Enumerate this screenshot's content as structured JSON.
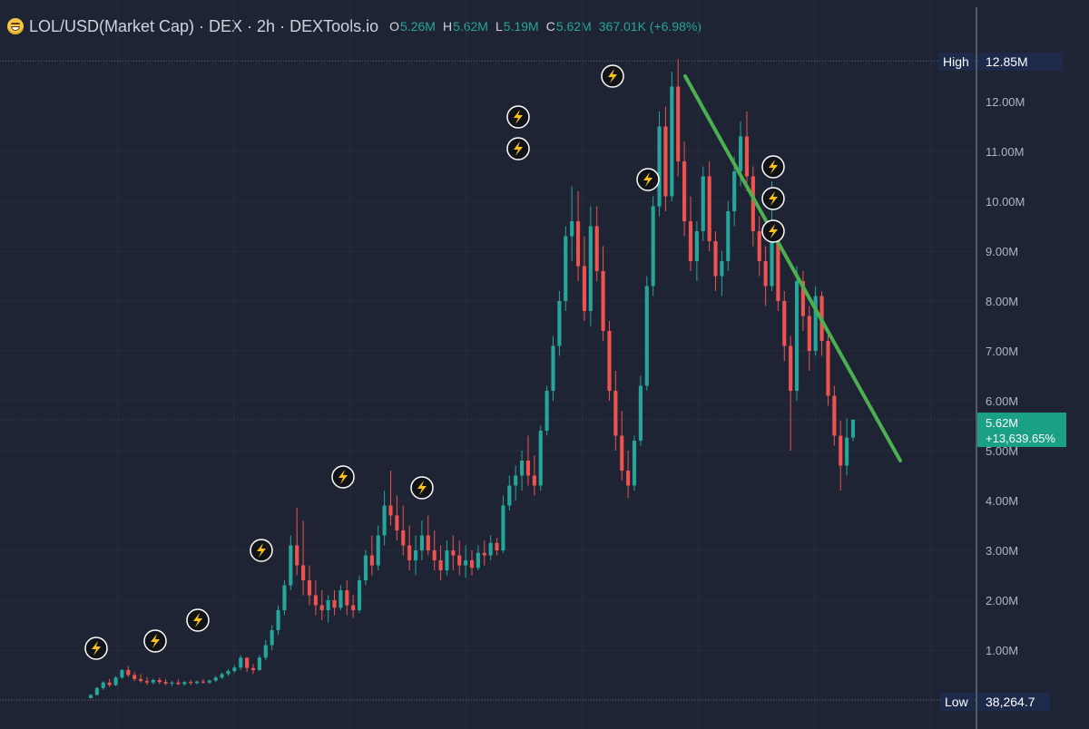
{
  "header": {
    "icon": "grinning-face-emoji-icon",
    "title": "LOL/USD(Market Cap) · DEX · 2h · DEXTools.io",
    "ohlc": [
      {
        "label": "O",
        "value": "5.26M"
      },
      {
        "label": "H",
        "value": "5.62M"
      },
      {
        "label": "L",
        "value": "5.19M"
      },
      {
        "label": "C",
        "value": "5.62M"
      }
    ],
    "change": "367.01K (+6.98%)"
  },
  "price_axis": {
    "labels": [
      "12.00M",
      "11.00M",
      "10.00M",
      "9.00M",
      "8.00M",
      "7.00M",
      "6.00M",
      "5.00M",
      "4.00M",
      "3.00M",
      "2.00M",
      "1.00M"
    ],
    "high": {
      "label": "High",
      "value": "12.85M"
    },
    "low": {
      "label": "Low",
      "value": "38,264.7"
    },
    "current": {
      "value": "5.62M",
      "change": "+13,639.65%"
    }
  },
  "colors": {
    "background": "#1e2433",
    "up": "#26a69a",
    "down": "#ef5350",
    "trendline": "#4caf50",
    "axis_badge": "#1e2a4a",
    "current_badge": "#1aa085",
    "marker": "#f7c21a"
  },
  "chart_data": {
    "type": "candlestick",
    "title": "LOL/USD(Market Cap) · DEX · 2h · DEXTools.io",
    "y_unit": "USD",
    "ylim": [
      0,
      13000000
    ],
    "grid": true,
    "series": [
      {
        "name": "LOL/USD(Market Cap)",
        "values": [
          [
            40000,
            120000,
            30000,
            100000
          ],
          [
            100000,
            260000,
            90000,
            240000
          ],
          [
            240000,
            380000,
            200000,
            350000
          ],
          [
            350000,
            420000,
            260000,
            300000
          ],
          [
            300000,
            480000,
            280000,
            450000
          ],
          [
            450000,
            620000,
            420000,
            600000
          ],
          [
            600000,
            680000,
            460000,
            500000
          ],
          [
            500000,
            560000,
            380000,
            420000
          ],
          [
            420000,
            520000,
            350000,
            380000
          ],
          [
            380000,
            460000,
            300000,
            350000
          ],
          [
            350000,
            430000,
            310000,
            400000
          ],
          [
            400000,
            450000,
            320000,
            360000
          ],
          [
            360000,
            420000,
            300000,
            330000
          ],
          [
            330000,
            380000,
            280000,
            350000
          ],
          [
            350000,
            410000,
            300000,
            320000
          ],
          [
            320000,
            380000,
            290000,
            360000
          ],
          [
            360000,
            400000,
            300000,
            340000
          ],
          [
            340000,
            390000,
            310000,
            370000
          ],
          [
            370000,
            420000,
            330000,
            350000
          ],
          [
            350000,
            410000,
            320000,
            390000
          ],
          [
            390000,
            480000,
            360000,
            450000
          ],
          [
            450000,
            550000,
            420000,
            520000
          ],
          [
            520000,
            620000,
            480000,
            580000
          ],
          [
            580000,
            700000,
            540000,
            650000
          ],
          [
            650000,
            900000,
            600000,
            850000
          ],
          [
            850000,
            780000,
            560000,
            640000
          ],
          [
            640000,
            720000,
            520000,
            600000
          ],
          [
            600000,
            900000,
            580000,
            850000
          ],
          [
            850000,
            1200000,
            800000,
            1100000
          ],
          [
            1100000,
            1500000,
            1000000,
            1400000
          ],
          [
            1400000,
            1900000,
            1300000,
            1800000
          ],
          [
            1800000,
            2400000,
            1700000,
            2300000
          ],
          [
            2300000,
            3300000,
            2200000,
            3100000
          ],
          [
            3100000,
            3850000,
            2500000,
            2700000
          ],
          [
            2700000,
            3600000,
            2100000,
            2400000
          ],
          [
            2400000,
            2700000,
            1900000,
            2100000
          ],
          [
            2100000,
            2400000,
            1700000,
            1900000
          ],
          [
            1900000,
            2200000,
            1600000,
            1800000
          ],
          [
            1800000,
            2100000,
            1550000,
            2000000
          ],
          [
            2000000,
            2200000,
            1700000,
            1850000
          ],
          [
            1850000,
            2300000,
            1800000,
            2200000
          ],
          [
            2200000,
            2400000,
            1700000,
            1900000
          ],
          [
            1900000,
            2100000,
            1650000,
            1800000
          ],
          [
            1800000,
            2500000,
            1750000,
            2400000
          ],
          [
            2400000,
            3000000,
            2300000,
            2900000
          ],
          [
            2900000,
            3300000,
            2500000,
            2700000
          ],
          [
            2700000,
            3500000,
            2600000,
            3300000
          ],
          [
            3300000,
            4200000,
            3100000,
            3900000
          ],
          [
            3900000,
            4600000,
            3500000,
            3700000
          ],
          [
            3700000,
            4100000,
            3200000,
            3400000
          ],
          [
            3400000,
            3900000,
            2900000,
            3100000
          ],
          [
            3100000,
            3500000,
            2600000,
            2800000
          ],
          [
            2800000,
            3300000,
            2500000,
            3000000
          ],
          [
            3000000,
            3600000,
            2800000,
            3300000
          ],
          [
            3300000,
            3700000,
            2900000,
            3000000
          ],
          [
            3000000,
            3400000,
            2600000,
            2800000
          ],
          [
            2800000,
            3100000,
            2400000,
            2600000
          ],
          [
            2600000,
            3200000,
            2500000,
            3000000
          ],
          [
            3000000,
            3300000,
            2600000,
            2900000
          ],
          [
            2900000,
            3200000,
            2500000,
            2700000
          ],
          [
            2700000,
            3100000,
            2450000,
            2800000
          ],
          [
            2800000,
            3000000,
            2500000,
            2650000
          ],
          [
            2650000,
            3100000,
            2600000,
            2950000
          ],
          [
            2950000,
            3200000,
            2700000,
            2900000
          ],
          [
            2900000,
            3300000,
            2800000,
            3150000
          ],
          [
            3150000,
            3250000,
            2900000,
            3000000
          ],
          [
            3000000,
            4100000,
            2950000,
            3900000
          ],
          [
            3900000,
            4500000,
            3800000,
            4300000
          ],
          [
            4300000,
            4700000,
            4000000,
            4500000
          ],
          [
            4500000,
            5000000,
            4200000,
            4800000
          ],
          [
            4800000,
            5300000,
            4300000,
            4500000
          ],
          [
            4500000,
            4900000,
            4100000,
            4300000
          ],
          [
            4300000,
            5500000,
            4200000,
            5400000
          ],
          [
            5400000,
            6300000,
            5300000,
            6200000
          ],
          [
            6200000,
            7300000,
            6000000,
            7100000
          ],
          [
            7100000,
            8200000,
            6900000,
            8000000
          ],
          [
            8000000,
            9500000,
            7800000,
            9300000
          ],
          [
            9300000,
            10300000,
            8800000,
            9600000
          ],
          [
            9600000,
            10200000,
            8400000,
            8700000
          ],
          [
            8700000,
            9300000,
            7600000,
            7800000
          ],
          [
            7800000,
            9900000,
            7500000,
            9500000
          ],
          [
            9500000,
            9900000,
            8400000,
            8600000
          ],
          [
            8600000,
            9100000,
            7200000,
            7400000
          ],
          [
            7400000,
            7600000,
            6000000,
            6200000
          ],
          [
            6200000,
            6600000,
            5000000,
            5300000
          ],
          [
            5300000,
            5800000,
            4400000,
            4600000
          ],
          [
            4600000,
            5000000,
            4050000,
            4300000
          ],
          [
            4300000,
            5300000,
            4200000,
            5200000
          ],
          [
            5200000,
            6500000,
            5100000,
            6300000
          ],
          [
            6300000,
            8500000,
            6200000,
            8300000
          ],
          [
            8300000,
            10100000,
            8100000,
            9900000
          ],
          [
            9900000,
            11800000,
            9700000,
            11500000
          ],
          [
            11500000,
            11900000,
            9800000,
            10100000
          ],
          [
            10100000,
            12600000,
            10000000,
            12300000
          ],
          [
            12300000,
            12850000,
            10500000,
            10800000
          ],
          [
            10800000,
            11200000,
            9300000,
            9600000
          ],
          [
            9600000,
            10100000,
            8600000,
            8800000
          ],
          [
            8800000,
            9600000,
            8400000,
            9400000
          ],
          [
            9400000,
            10700000,
            9200000,
            10500000
          ],
          [
            10500000,
            10800000,
            9000000,
            9200000
          ],
          [
            9200000,
            9400000,
            8200000,
            8500000
          ],
          [
            8500000,
            9000000,
            8100000,
            8800000
          ],
          [
            8800000,
            10000000,
            8600000,
            9800000
          ],
          [
            9800000,
            10900000,
            9500000,
            10600000
          ],
          [
            10600000,
            11600000,
            10300000,
            11300000
          ],
          [
            11300000,
            11800000,
            10200000,
            10500000
          ],
          [
            10500000,
            10700000,
            9100000,
            9400000
          ],
          [
            9400000,
            9700000,
            8500000,
            8800000
          ],
          [
            8800000,
            9100000,
            7900000,
            8300000
          ],
          [
            8300000,
            10400000,
            8200000,
            9300000
          ],
          [
            9300000,
            9500000,
            7800000,
            8000000
          ],
          [
            8000000,
            8200000,
            6800000,
            7100000
          ],
          [
            7100000,
            7300000,
            5000000,
            6200000
          ],
          [
            6200000,
            8700000,
            6000000,
            8400000
          ],
          [
            8400000,
            8600000,
            7400000,
            7700000
          ],
          [
            7700000,
            7900000,
            6600000,
            7000000
          ],
          [
            7000000,
            8300000,
            6900000,
            8100000
          ],
          [
            8100000,
            8200000,
            6900000,
            7200000
          ],
          [
            7200000,
            7400000,
            5900000,
            6100000
          ],
          [
            6100000,
            6300000,
            5100000,
            5300000
          ],
          [
            5300000,
            5600000,
            4200000,
            4700000
          ],
          [
            4700000,
            5650000,
            4500000,
            5260000
          ],
          [
            5260000,
            5620000,
            5190000,
            5620000
          ]
        ]
      }
    ],
    "value_format": [
      "open",
      "high",
      "low",
      "close"
    ],
    "annotations": {
      "marker_icon": "lightning-bolt-icon",
      "trendline": {
        "from_index": 98,
        "from_value": 12300000,
        "to_index": 125,
        "to_value": 4900000
      }
    }
  }
}
